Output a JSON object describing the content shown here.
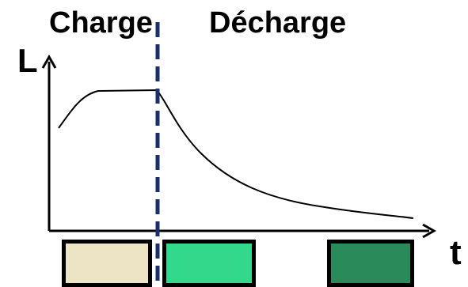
{
  "phases": {
    "charge_label": "Charge",
    "decharge_label": "Décharge"
  },
  "axes": {
    "y_label": "L",
    "x_label": "t"
  },
  "colors": {
    "divider": "#1a2f6b",
    "curve": "#000000",
    "axis": "#000000"
  },
  "swatches": [
    {
      "phase": "charge",
      "color": "#ece4c4"
    },
    {
      "phase": "decharge-early",
      "color": "#33d98a"
    },
    {
      "phase": "decharge-late",
      "color": "#2a8a5a"
    }
  ]
}
